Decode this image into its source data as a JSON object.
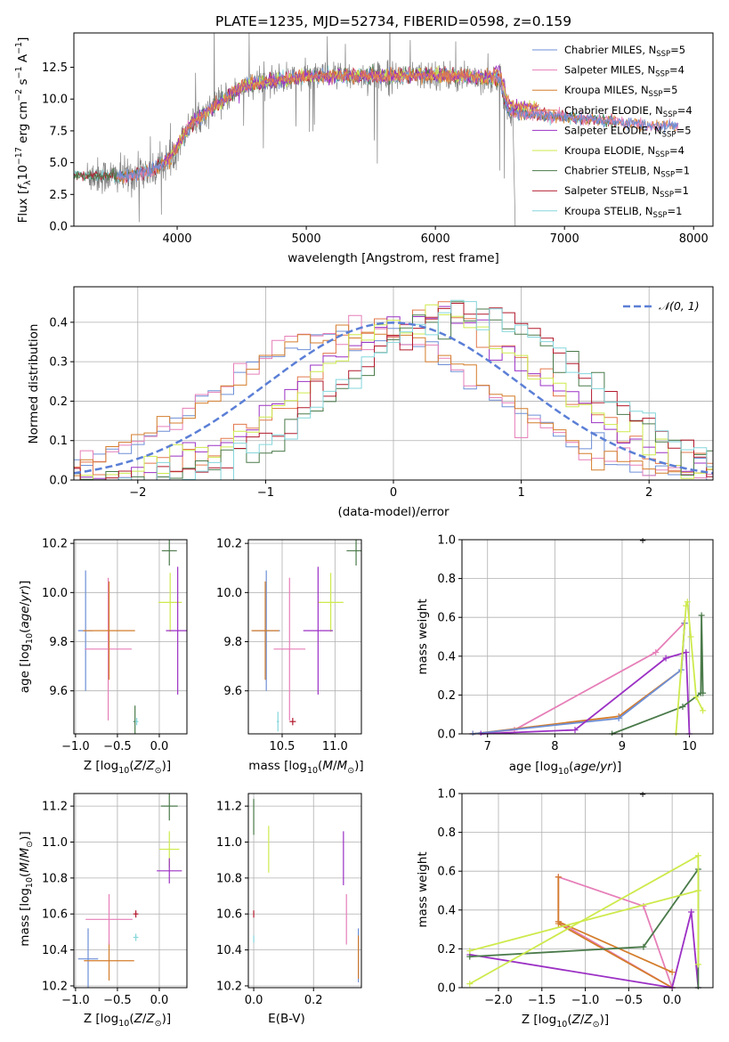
{
  "chart_data": [
    {
      "id": "spectrum",
      "type": "line",
      "title": "PLATE=1235, MJD=52734, FIBERID=0598, z=0.159",
      "xlabel": "wavelength [Angstrom, rest frame]",
      "ylabel": "Flux [f$_\\lambda$10$^{-17}$ erg cm$^{-2}$ s$^{-1}$ A$^{-1}$]",
      "xlim": [
        3200,
        8150
      ],
      "ylim": [
        0,
        15.2
      ],
      "xticks": [
        "4000",
        "5000",
        "6000",
        "7000",
        "8000"
      ],
      "yticks": [
        "0.0",
        "2.5",
        "5.0",
        "7.5",
        "10.0",
        "12.5"
      ],
      "grid": false,
      "legend_position": "top-right",
      "legend": [
        {
          "name": "Chabrier MILES, N",
          "sub": "SSP",
          "tail": "=5",
          "color": "#6d8fd6"
        },
        {
          "name": "Salpeter MILES, N",
          "sub": "SSP",
          "tail": "=4",
          "color": "#e67fb8"
        },
        {
          "name": "Kroupa MILES, N",
          "sub": "SSP",
          "tail": "=5",
          "color": "#d47d2c"
        },
        {
          "name": "Chabrier ELODIE, N",
          "sub": "SSP",
          "tail": "=4",
          "color": "#e2784b"
        },
        {
          "name": "Salpeter ELODIE, N",
          "sub": "SSP",
          "tail": "=5",
          "color": "#9b30c4"
        },
        {
          "name": "Kroupa ELODIE, N",
          "sub": "SSP",
          "tail": "=4",
          "color": "#cdea4c"
        },
        {
          "name": "Chabrier STELIB, N",
          "sub": "SSP",
          "tail": "=1",
          "color": "#4a7a4a"
        },
        {
          "name": "Salpeter STELIB, N",
          "sub": "SSP",
          "tail": "=1",
          "color": "#b2182b"
        },
        {
          "name": "Kroupa STELIB, N",
          "sub": "SSP",
          "tail": "=1",
          "color": "#84d6dc"
        }
      ],
      "continuum": {
        "x": [
          3300,
          3600,
          3800,
          3950,
          4100,
          4300,
          4500,
          5000,
          5500,
          6000,
          6500,
          6560,
          6600,
          6800,
          7000,
          7400,
          7700,
          7880
        ],
        "y": [
          4.0,
          3.9,
          4.3,
          5.4,
          8.0,
          9.5,
          11.0,
          11.8,
          11.8,
          11.9,
          11.6,
          9.2,
          8.9,
          8.8,
          8.6,
          8.2,
          7.9,
          7.9
        ]
      },
      "model_range": {
        "ELODIE": [
          3900,
          6800
        ],
        "STELIB": [
          3200,
          7400
        ],
        "MILES": [
          3530,
          7880
        ]
      },
      "data_range": [
        3300,
        6600
      ]
    },
    {
      "id": "residuals",
      "type": "line",
      "xlabel": "(data-model)/error",
      "ylabel": "Normed distribution",
      "xlim": [
        -2.5,
        2.5
      ],
      "ylim": [
        0,
        0.49
      ],
      "xticks": [
        "−2",
        "−1",
        "0",
        "1",
        "2"
      ],
      "yticks": [
        "0.0",
        "0.1",
        "0.2",
        "0.3",
        "0.4"
      ],
      "grid": true,
      "legend_position": "top-right",
      "gaussian_label": "𝒩(0, 1)",
      "gaussian_color": "#5b7fd6",
      "bin_width": 0.1,
      "families": [
        {
          "name": "MILES",
          "mu": -0.3,
          "sigma": 1.03,
          "color_index": [
            0,
            1,
            2
          ]
        },
        {
          "name": "ELODIE",
          "mu": 0.3,
          "sigma": 0.95,
          "color_index": [
            3,
            4,
            5
          ]
        },
        {
          "name": "STELIB",
          "mu": 0.6,
          "sigma": 0.93,
          "color_index": [
            6,
            7,
            8
          ]
        }
      ]
    },
    {
      "id": "age-vs-Z",
      "type": "scatter",
      "xlabel": "Z [log$_{10}$(Z/Z$_\\odot$)]",
      "ylabel": "age  [log$_{10}$(age/yr)]",
      "xlim": [
        -1.02,
        0.33
      ],
      "ylim": [
        9.425,
        10.215
      ],
      "xticks": [
        "−1.0",
        "−0.5",
        "0.0"
      ],
      "yticks": [
        "9.6",
        "9.8",
        "10.0",
        "10.2"
      ],
      "points": [
        {
          "x": -0.88,
          "y": 9.845,
          "xerr": 0.09,
          "yerr": 0.245,
          "c": 0
        },
        {
          "x": -0.61,
          "y": 9.77,
          "xerr": 0.28,
          "yerr": 0.29,
          "c": 1
        },
        {
          "x": -0.6,
          "y": 9.845,
          "xerr": 0.31,
          "yerr": 0.2,
          "c": 2
        },
        {
          "x": -0.29,
          "y": 9.475,
          "xerr": 0.02,
          "yerr": 0.065,
          "c": 6
        },
        {
          "x": -0.27,
          "y": 9.475,
          "xerr": 0.02,
          "yerr": 0.015,
          "c": 8
        },
        {
          "x": 0.12,
          "y": 10.17,
          "xerr": 0.09,
          "yerr": 0.06,
          "c": 6
        },
        {
          "x": 0.13,
          "y": 9.96,
          "xerr": 0.14,
          "yerr": 0.12,
          "c": 5
        },
        {
          "x": 0.22,
          "y": 9.845,
          "xerr": 0.14,
          "yerr": 0.26,
          "c": 4
        }
      ]
    },
    {
      "id": "age-vs-mass",
      "type": "scatter",
      "xlabel": "mass [log$_{10}$(M/M$_\\odot$)]",
      "ylabel": "",
      "xlim": [
        10.18,
        11.25
      ],
      "ylim": [
        9.425,
        10.215
      ],
      "xticks": [
        "10.5",
        "11.0"
      ],
      "yticks": [
        "9.6",
        "9.8",
        "10.0",
        "10.2"
      ],
      "points": [
        {
          "x": 10.35,
          "y": 9.845,
          "xerr": 0.13,
          "yerr": 0.245,
          "c": 0
        },
        {
          "x": 10.34,
          "y": 9.845,
          "xerr": 0.13,
          "yerr": 0.2,
          "c": 2
        },
        {
          "x": 10.57,
          "y": 9.77,
          "xerr": 0.15,
          "yerr": 0.29,
          "c": 1
        },
        {
          "x": 10.6,
          "y": 9.475,
          "xerr": 0.03,
          "yerr": 0.015,
          "c": 7
        },
        {
          "x": 10.46,
          "y": 9.475,
          "xerr": 0.01,
          "yerr": 0.04,
          "c": 8
        },
        {
          "x": 10.96,
          "y": 9.96,
          "xerr": 0.12,
          "yerr": 0.12,
          "c": 5
        },
        {
          "x": 10.84,
          "y": 9.845,
          "xerr": 0.14,
          "yerr": 0.26,
          "c": 4
        },
        {
          "x": 11.2,
          "y": 10.17,
          "xerr": 0.09,
          "yerr": 0.06,
          "c": 6
        }
      ]
    },
    {
      "id": "massweight-vs-age",
      "type": "line",
      "xlabel": "age  [log$_{10}$(age/yr)]",
      "ylabel": "mass weight",
      "xlim": [
        6.62,
        10.35
      ],
      "ylim": [
        0,
        1
      ],
      "xticks": [
        "7",
        "8",
        "9",
        "10"
      ],
      "yticks": [
        "0.0",
        "0.2",
        "0.4",
        "0.6",
        "0.8",
        "1.0"
      ],
      "series": [
        {
          "c": 1,
          "x": [
            6.78,
            7.4,
            9.5,
            9.92
          ],
          "y": [
            0.0,
            0.02,
            0.42,
            0.57
          ]
        },
        {
          "c": 2,
          "x": [
            6.78,
            8.95,
            9.88,
            9.93
          ],
          "y": [
            0.0,
            0.09,
            0.33,
            0.57
          ]
        },
        {
          "c": 0,
          "x": [
            6.78,
            8.95,
            9.88,
            9.93
          ],
          "y": [
            0.0,
            0.08,
            0.33,
            0.57
          ]
        },
        {
          "c": 4,
          "x": [
            6.9,
            8.3,
            9.65,
            9.95,
            10.0
          ],
          "y": [
            0.0,
            0.02,
            0.39,
            0.42,
            0.0
          ]
        },
        {
          "c": 6,
          "x": [
            8.85,
            9.9,
            10.17,
            10.18,
            10.2
          ],
          "y": [
            0.0,
            0.14,
            0.21,
            0.61,
            0.21
          ]
        },
        {
          "c": 5,
          "x": [
            9.8,
            9.95,
            9.97,
            10.02,
            10.1,
            10.2
          ],
          "y": [
            0.0,
            0.66,
            0.68,
            0.5,
            0.19,
            0.12
          ]
        }
      ]
    },
    {
      "id": "mass-vs-Z",
      "type": "scatter",
      "xlabel": "Z [log$_{10}$(Z/Z$_\\odot$)]",
      "ylabel": "mass [log$_{10}$(M/M$_\\odot$)]",
      "xlim": [
        -1.02,
        0.33
      ],
      "ylim": [
        10.19,
        11.27
      ],
      "xticks": [
        "−1.0",
        "−0.5",
        "0.0"
      ],
      "yticks": [
        "10.2",
        "10.4",
        "10.6",
        "10.8",
        "11.0",
        "11.2"
      ],
      "points": [
        {
          "x": -0.85,
          "y": 10.35,
          "xerr": 0.12,
          "yerr": 0.17,
          "c": 0
        },
        {
          "x": -0.6,
          "y": 10.34,
          "xerr": 0.3,
          "yerr": 0.11,
          "c": 2
        },
        {
          "x": -0.6,
          "y": 10.57,
          "xerr": 0.28,
          "yerr": 0.14,
          "c": 1
        },
        {
          "x": -0.28,
          "y": 10.6,
          "xerr": 0.03,
          "yerr": 0.02,
          "c": 7
        },
        {
          "x": -0.28,
          "y": 10.47,
          "xerr": 0.03,
          "yerr": 0.02,
          "c": 8
        },
        {
          "x": 0.12,
          "y": 11.2,
          "xerr": 0.1,
          "yerr": 0.08,
          "c": 6
        },
        {
          "x": 0.12,
          "y": 10.96,
          "xerr": 0.12,
          "yerr": 0.1,
          "c": 5
        },
        {
          "x": 0.12,
          "y": 10.84,
          "xerr": 0.15,
          "yerr": 0.07,
          "c": 4
        }
      ]
    },
    {
      "id": "mass-vs-ebv",
      "type": "scatter",
      "xlabel": "E(B-V)",
      "ylabel": "",
      "xlim": [
        -0.018,
        0.36
      ],
      "ylim": [
        10.19,
        11.27
      ],
      "xticks": [
        "0.0",
        "0.2"
      ],
      "yticks": [
        "10.2",
        "10.4",
        "10.6",
        "10.8",
        "11.0",
        "11.2"
      ],
      "points": [
        {
          "x": 0.0,
          "y": 11.14,
          "yerr": 0.1,
          "c": 6
        },
        {
          "x": 0.0,
          "y": 10.6,
          "yerr": 0.02,
          "c": 7
        },
        {
          "x": 0.0,
          "y": 10.46,
          "yerr": 0.02,
          "c": 8
        },
        {
          "x": 0.05,
          "y": 10.96,
          "yerr": 0.13,
          "c": 5
        },
        {
          "x": 0.3,
          "y": 10.91,
          "yerr": 0.15,
          "c": 4
        },
        {
          "x": 0.31,
          "y": 10.57,
          "yerr": 0.14,
          "c": 1
        },
        {
          "x": 0.35,
          "y": 10.37,
          "yerr": 0.15,
          "c": 0
        },
        {
          "x": 0.35,
          "y": 10.36,
          "yerr": 0.12,
          "c": 2
        }
      ]
    },
    {
      "id": "massweight-vs-Z",
      "type": "line",
      "xlabel": "Z [log$_{10}$(Z/Z$_\\odot$)]",
      "ylabel": "mass weight",
      "xlim": [
        -2.42,
        0.47
      ],
      "ylim": [
        0,
        1
      ],
      "xticks": [
        "−2.0",
        "−1.5",
        "−1.0",
        "−0.5",
        "0.0"
      ],
      "yticks": [
        "0.0",
        "0.2",
        "0.4",
        "0.6",
        "0.8",
        "1.0"
      ],
      "series": [
        {
          "c": 1,
          "x": [
            0.0,
            -0.33,
            -1.31,
            -1.31,
            0.0
          ],
          "y": [
            0.0,
            0.42,
            0.57,
            0.34,
            0.0
          ]
        },
        {
          "c": 2,
          "x": [
            0.0,
            -1.31,
            -1.31,
            -1.31,
            0.0
          ],
          "y": [
            0.0,
            0.33,
            0.57,
            0.34,
            0.08
          ]
        },
        {
          "c": 4,
          "x": [
            -2.33,
            0.0,
            0.22,
            0.3
          ],
          "y": [
            0.17,
            0.0,
            0.39,
            0.0
          ]
        },
        {
          "c": 6,
          "x": [
            -2.33,
            -0.33,
            0.3,
            0.3
          ],
          "y": [
            0.16,
            0.21,
            0.61,
            0.0
          ]
        },
        {
          "c": 5,
          "x": [
            -2.33,
            0.3,
            0.3,
            0.3,
            -2.33
          ],
          "y": [
            0.02,
            0.68,
            0.12,
            0.5,
            0.19
          ]
        }
      ]
    }
  ]
}
